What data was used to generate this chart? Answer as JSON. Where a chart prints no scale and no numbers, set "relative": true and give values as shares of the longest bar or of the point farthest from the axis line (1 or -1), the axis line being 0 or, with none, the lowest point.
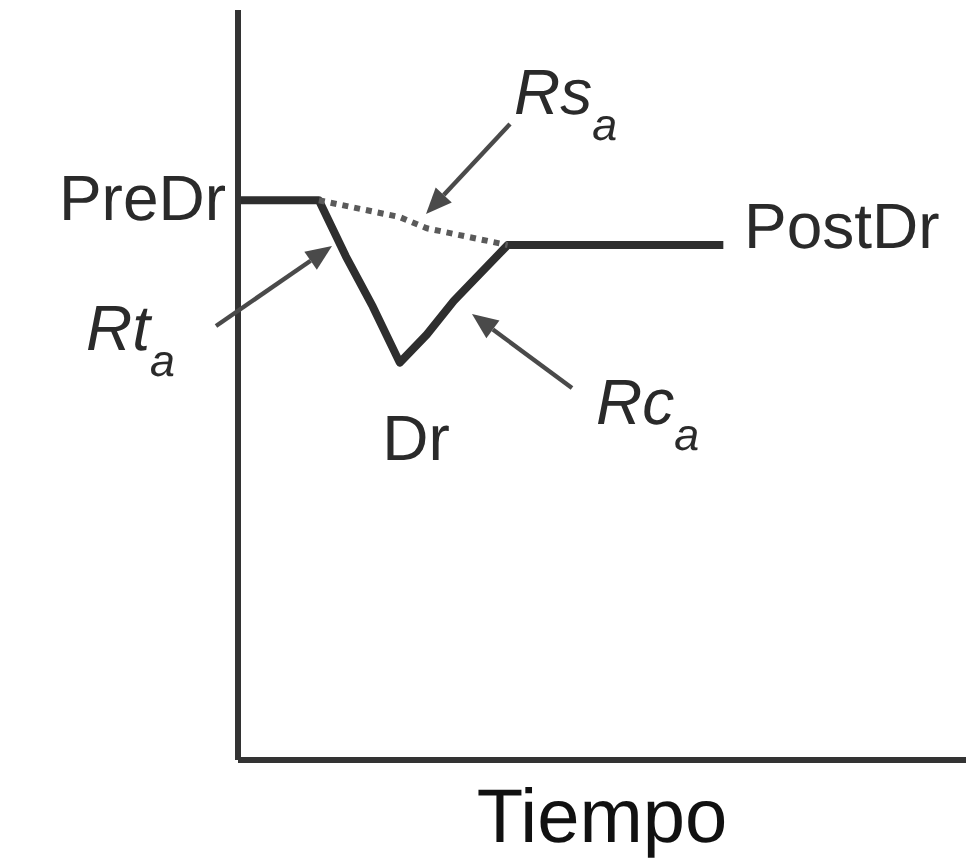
{
  "chart_data": {
    "type": "line",
    "xlabel": "Tiempo",
    "relative": true,
    "marker": "none",
    "categories": [
      null,
      null,
      null,
      null,
      null,
      null,
      null,
      null,
      null,
      null,
      null,
      null,
      null,
      null,
      null,
      null,
      null,
      null,
      null,
      null,
      null,
      null,
      null,
      null,
      null,
      null,
      null,
      null
    ],
    "series": [
      {
        "color": "#2e2e2e",
        "line_style": "solid",
        "values": [
          1,
          1,
          1,
          1,
          0.9,
          0.81,
          0.71,
          0.76,
          0.82,
          0.87,
          0.92,
          0.92,
          0.92,
          0.92,
          0.92,
          0.92,
          0.92,
          0.92,
          0.92,
          null,
          null,
          null,
          null,
          null,
          null,
          null,
          null,
          null
        ]
      },
      {
        "color": "#5a5a5a",
        "line_style": "dotted",
        "values": [
          null,
          null,
          null,
          1,
          0.99,
          0.98,
          0.97,
          0.95,
          0.94,
          0.93,
          0.92,
          null,
          null,
          null,
          null,
          null,
          null,
          null,
          null,
          null,
          null,
          null,
          null,
          null,
          null,
          null,
          null,
          null
        ]
      }
    ],
    "annotations": [
      "Rs$_{a}$",
      "PreDr",
      "PostDr",
      "Rt$_{a}$",
      "Dr",
      "Rc$_{a}$"
    ]
  }
}
